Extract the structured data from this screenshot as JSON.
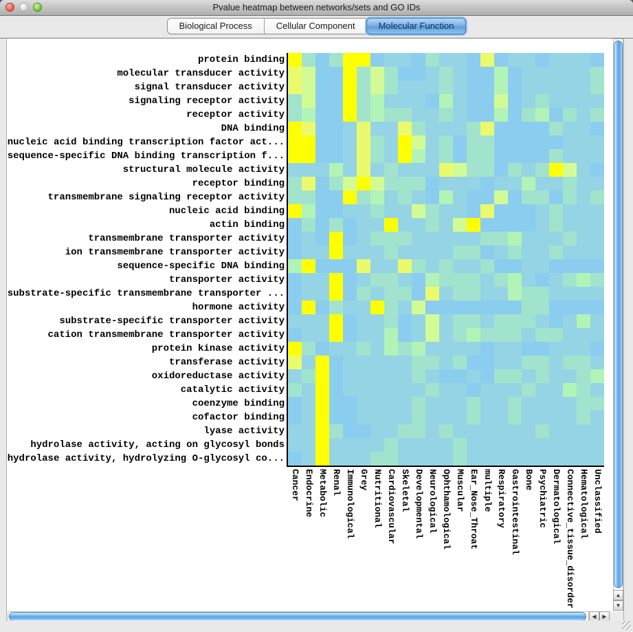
{
  "window": {
    "title": "Pvalue heatmap between networks/sets and GO IDs"
  },
  "tabs": [
    {
      "label": "Biological Process",
      "selected": false
    },
    {
      "label": "Cellular Component",
      "selected": false
    },
    {
      "label": "Molecular Function",
      "selected": true
    }
  ],
  "scrollbars": {
    "up_arrow": "▲",
    "down_arrow": "▼",
    "left_arrow": "◀",
    "right_arrow": "▶"
  },
  "chart_data": {
    "type": "heatmap",
    "x_labels": [
      "Cancer",
      "Endocrine",
      "Metabolic",
      "Renal",
      "Immunological",
      "Grey",
      "Nutritional",
      "Cardiovascular",
      "Skeletal",
      "Developmental",
      "Neurological",
      "Ophthamological",
      "Muscular",
      "Ear_Nose_Throat",
      "multiple",
      "Respiratory",
      "Gastrointestinal",
      "Bone",
      "Psychiatric",
      "Dermatological",
      "Connective_tissue_disorder",
      "Hematological",
      "Unclassified"
    ],
    "y_labels": [
      "protein binding",
      "molecular transducer activity",
      "signal transducer activity",
      "signaling receptor activity",
      "receptor activity",
      "DNA binding",
      "nucleic acid binding transcription factor act...",
      "sequence-specific DNA binding transcription f...",
      "structural molecule activity",
      "receptor binding",
      "transmembrane signaling receptor activity",
      "nucleic acid binding",
      "actin binding",
      "transmembrane transporter activity",
      "ion transmembrane transporter activity",
      "sequence-specific DNA binding",
      "transporter activity",
      "substrate-specific transmembrane transporter ...",
      "hormone activity",
      "substrate-specific transporter activity",
      "cation transmembrane transporter activity",
      "protein kinase activity",
      "transferase activity",
      "oxidoreductase activity",
      "catalytic activity",
      "coenzyme binding",
      "cofactor binding",
      "lyase activity",
      "hydrolase activity, acting on glycosyl bonds",
      "hydrolase activity, hydrolyzing O-glycosyl co..."
    ],
    "palette": [
      "#8BCDEE",
      "#95D4E4",
      "#A2E3CE",
      "#B2F3B8",
      "#D3FB95",
      "#E9FB6D",
      "#FEFF00"
    ],
    "scale": "cell values are palette indices: 0 = low significance (blue) to 6 = high significance (yellow)",
    "values": [
      "62026601102110501101110",
      "54006242001210030111112",
      "54006242111210030111112",
      "24006231110310040121111",
      "23006232211210030230212",
      "65001511521112500002110",
      "66001521641202200000111",
      "66001521631202200002111",
      "11131512111542202126410",
      "25024642220111011311211",
      "22006231210310040220212",
      "63001121142110500012111",
      "02020116112146000012111",
      "01060122211111223111211",
      "01161112111122012112111",
      "36000511521211200110000",
      "01160122103222123101232",
      "01160212205122113221111",
      "06021162140000000220000",
      "11160112014122122210131",
      "01160113014123222122111",
      "62011213231111011001110",
      "51601111122120011221221",
      "12601111121001022121123",
      "21601111112110111211321",
      "01600111121112112111122",
      "01600111121112112111121",
      "11620011221211111121111",
      "11611112111121111111111",
      "01611122111121111111111"
    ]
  }
}
